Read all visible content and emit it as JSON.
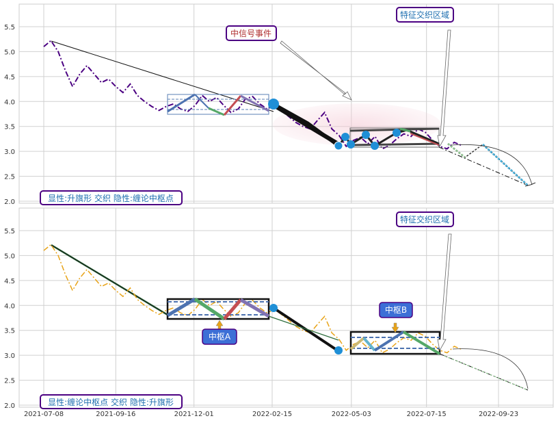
{
  "chart_data": [
    {
      "type": "line",
      "panel": "top",
      "ylim": [
        1.98,
        5.93
      ],
      "yticks": [
        "5.5",
        "5.0",
        "4.5",
        "4.0",
        "3.5",
        "3.0",
        "2.5",
        "2.0"
      ],
      "ytick_values": [
        5.5,
        5.0,
        4.5,
        4.0,
        3.5,
        3.0,
        2.5,
        2.0
      ],
      "grid": true,
      "price_series": {
        "color": "#4b0082",
        "style": "dash-dot",
        "x": [
          "2021-07-08",
          "2021-07-15",
          "2021-07-22",
          "2021-07-29",
          "2021-08-05",
          "2021-08-12",
          "2021-08-19",
          "2021-08-26",
          "2021-09-02",
          "2021-09-09",
          "2021-09-16",
          "2021-09-23",
          "2021-09-30",
          "2021-10-07",
          "2021-10-14",
          "2021-10-21",
          "2021-10-28",
          "2021-11-04",
          "2021-11-11",
          "2021-11-18",
          "2021-11-25",
          "2021-12-02",
          "2021-12-09",
          "2021-12-16",
          "2021-12-23",
          "2021-12-30",
          "2022-01-06",
          "2022-01-13",
          "2022-01-20",
          "2022-01-27",
          "2022-02-03",
          "2022-02-10",
          "2022-02-17",
          "2022-02-24",
          "2022-03-03",
          "2022-03-10",
          "2022-03-17",
          "2022-03-24",
          "2022-03-31",
          "2022-04-07",
          "2022-04-14",
          "2022-04-21",
          "2022-04-28",
          "2022-05-05",
          "2022-05-12",
          "2022-05-19",
          "2022-05-26",
          "2022-06-02",
          "2022-06-09",
          "2022-06-16",
          "2022-06-23",
          "2022-06-30",
          "2022-07-07",
          "2022-07-14",
          "2022-07-21",
          "2022-07-28",
          "2022-08-04",
          "2022-08-11",
          "2022-08-18"
        ],
        "y": [
          5.1,
          5.22,
          5.0,
          4.62,
          4.3,
          4.55,
          4.72,
          4.55,
          4.38,
          4.45,
          4.3,
          4.18,
          4.35,
          4.12,
          4.0,
          3.9,
          3.82,
          3.9,
          3.95,
          3.85,
          3.8,
          3.92,
          4.12,
          4.0,
          4.08,
          3.92,
          3.78,
          3.85,
          4.05,
          4.1,
          3.95,
          3.85,
          3.92,
          3.82,
          3.7,
          3.58,
          3.5,
          3.45,
          3.62,
          3.78,
          3.45,
          3.32,
          3.1,
          3.22,
          3.28,
          3.15,
          3.3,
          3.05,
          3.12,
          3.25,
          3.35,
          3.3,
          3.45,
          3.38,
          3.22,
          3.1,
          3.05,
          3.18,
          3.12
        ]
      },
      "annotations": [
        {
          "text": "特征交织区域",
          "color": "#1f6fb0"
        },
        {
          "text": "中信号事件",
          "color": "#b03030"
        },
        {
          "text": "显性:升旗形 交织 隐性:缠论中枢点",
          "color": "#1f6fb0"
        }
      ]
    },
    {
      "type": "line",
      "panel": "bottom",
      "ylim": [
        1.98,
        5.93
      ],
      "yticks": [
        "5.5",
        "5.0",
        "4.5",
        "4.0",
        "3.5",
        "3.0",
        "2.5",
        "2.0"
      ],
      "ytick_values": [
        5.5,
        5.0,
        4.5,
        4.0,
        3.5,
        3.0,
        2.5,
        2.0
      ],
      "xticks": [
        "2021-07-08",
        "2021-09-16",
        "2021-12-01",
        "2022-02-15",
        "2022-05-03",
        "2022-07-15",
        "2022-09-23"
      ],
      "grid": true,
      "price_series": {
        "color": "#e8a317",
        "style": "dash-dot",
        "x": [
          "2021-07-08",
          "2021-07-15",
          "2021-07-22",
          "2021-07-29",
          "2021-08-05",
          "2021-08-12",
          "2021-08-19",
          "2021-08-26",
          "2021-09-02",
          "2021-09-09",
          "2021-09-16",
          "2021-09-23",
          "2021-09-30",
          "2021-10-07",
          "2021-10-14",
          "2021-10-21",
          "2021-10-28",
          "2021-11-04",
          "2021-11-11",
          "2021-11-18",
          "2021-11-25",
          "2021-12-02",
          "2021-12-09",
          "2021-12-16",
          "2021-12-23",
          "2021-12-30",
          "2022-01-06",
          "2022-01-13",
          "2022-01-20",
          "2022-01-27",
          "2022-02-03",
          "2022-02-10",
          "2022-02-17",
          "2022-02-24",
          "2022-03-03",
          "2022-03-10",
          "2022-03-17",
          "2022-03-24",
          "2022-03-31",
          "2022-04-07",
          "2022-04-14",
          "2022-04-21",
          "2022-04-28",
          "2022-05-05",
          "2022-05-12",
          "2022-05-19",
          "2022-05-26",
          "2022-06-02",
          "2022-06-09",
          "2022-06-16",
          "2022-06-23",
          "2022-06-30",
          "2022-07-07",
          "2022-07-14",
          "2022-07-21",
          "2022-07-28",
          "2022-08-04",
          "2022-08-11",
          "2022-08-18"
        ],
        "y": [
          5.1,
          5.22,
          5.0,
          4.62,
          4.3,
          4.55,
          4.72,
          4.55,
          4.38,
          4.45,
          4.3,
          4.18,
          4.35,
          4.12,
          4.0,
          3.9,
          3.82,
          3.9,
          3.95,
          3.85,
          3.8,
          3.92,
          4.12,
          4.0,
          4.08,
          3.92,
          3.78,
          3.85,
          4.05,
          4.1,
          3.95,
          3.85,
          3.92,
          3.82,
          3.7,
          3.58,
          3.5,
          3.45,
          3.62,
          3.78,
          3.45,
          3.32,
          3.1,
          3.22,
          3.28,
          3.15,
          3.3,
          3.05,
          3.12,
          3.25,
          3.35,
          3.3,
          3.45,
          3.38,
          3.22,
          3.1,
          3.05,
          3.18,
          3.12
        ]
      },
      "annotations": [
        {
          "text": "特征交织区域",
          "color": "#1f6fb0"
        },
        {
          "text": "中枢A",
          "color": "#ffffff"
        },
        {
          "text": "中枢B",
          "color": "#ffffff"
        },
        {
          "text": "显性:缠论中枢点 交织 隐性:升旗形",
          "color": "#1f6fb0"
        }
      ]
    }
  ]
}
